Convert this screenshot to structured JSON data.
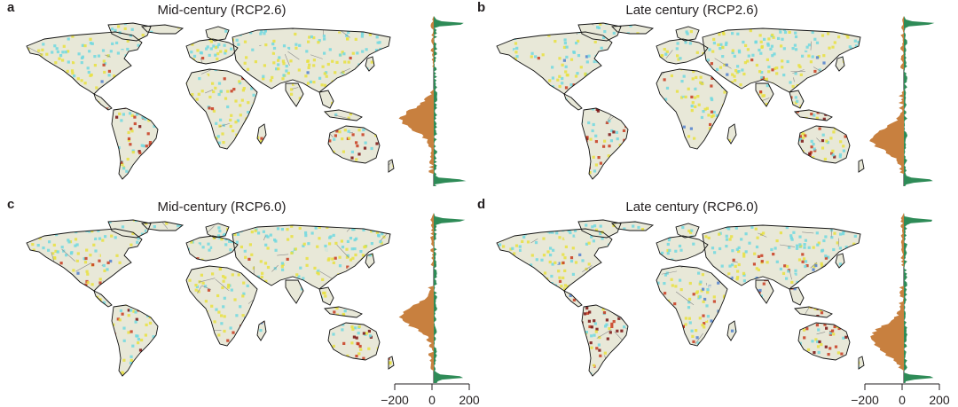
{
  "panels": [
    {
      "letter": "a",
      "title": "Mid-century (RCP2.6)"
    },
    {
      "letter": "b",
      "title": "Late century (RCP2.6)"
    },
    {
      "letter": "c",
      "title": "Mid-century (RCP6.0)"
    },
    {
      "letter": "d",
      "title": "Late century (RCP6.0)"
    }
  ],
  "histogram_axis": {
    "tick_labels": [
      "−200",
      "0",
      "200"
    ]
  },
  "colors": {
    "dry": "#c8803f",
    "wet": "#2e8b57",
    "ocean": "#ffffff",
    "land_neutral": "#e8e8d8",
    "yellow": "#e8e040",
    "cyan": "#70d8e0",
    "red": "#c83a1e",
    "darkred": "#7a1010",
    "blue": "#5080d0",
    "coast": "#111111",
    "border": "#8a8a8a"
  }
}
